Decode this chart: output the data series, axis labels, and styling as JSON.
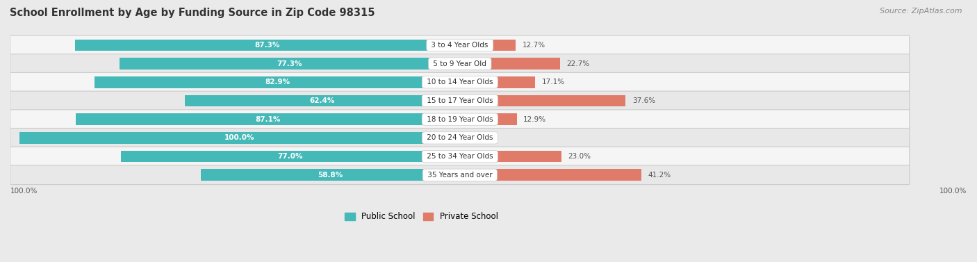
{
  "title": "School Enrollment by Age by Funding Source in Zip Code 98315",
  "source": "Source: ZipAtlas.com",
  "categories": [
    "3 to 4 Year Olds",
    "5 to 9 Year Old",
    "10 to 14 Year Olds",
    "15 to 17 Year Olds",
    "18 to 19 Year Olds",
    "20 to 24 Year Olds",
    "25 to 34 Year Olds",
    "35 Years and over"
  ],
  "public_values": [
    87.3,
    77.3,
    82.9,
    62.4,
    87.1,
    100.0,
    77.0,
    58.8
  ],
  "private_values": [
    12.7,
    22.7,
    17.1,
    37.6,
    12.9,
    0.0,
    23.0,
    41.2
  ],
  "public_color": "#45b8b8",
  "private_color": "#e07b6a",
  "bg_color": "#eaeaea",
  "row_bg_even": "#f5f5f5",
  "row_bg_odd": "#e8e8e8",
  "axis_label_left": "100.0%",
  "axis_label_right": "100.0%",
  "bar_height": 0.62,
  "title_fontsize": 10.5,
  "source_fontsize": 8,
  "cat_fontsize": 7.5,
  "value_fontsize": 7.5,
  "legend_fontsize": 8.5,
  "xlim": 100
}
